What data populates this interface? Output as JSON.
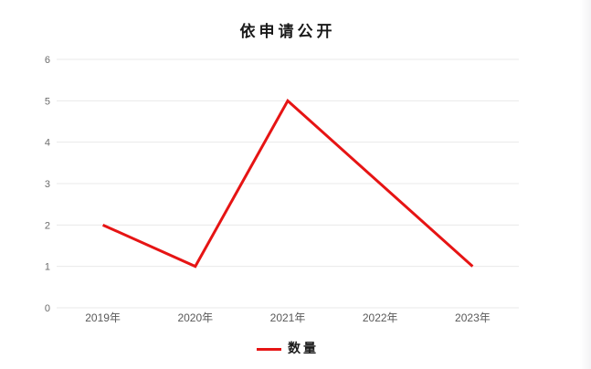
{
  "chart_data": {
    "type": "line",
    "title": "依申请公开",
    "categories": [
      "2019年",
      "2020年",
      "2021年",
      "2022年",
      "2023年"
    ],
    "series": [
      {
        "name": "数量",
        "values": [
          2,
          1,
          5,
          3,
          1
        ],
        "color": "#e61414"
      }
    ],
    "xlabel": "",
    "ylabel": "",
    "ylim": [
      0,
      6
    ],
    "y_ticks": [
      0,
      1,
      2,
      3,
      4,
      5,
      6
    ],
    "grid": true,
    "legend_position": "bottom"
  },
  "colors": {
    "background": "#ffffff",
    "gridline": "#e9e9e9",
    "y_tick_label": "#6b6b6b",
    "x_tick_label": "#595959",
    "title": "#1a1a1a",
    "series_red": "#e61414",
    "window_edge": "#f3f3f5"
  }
}
